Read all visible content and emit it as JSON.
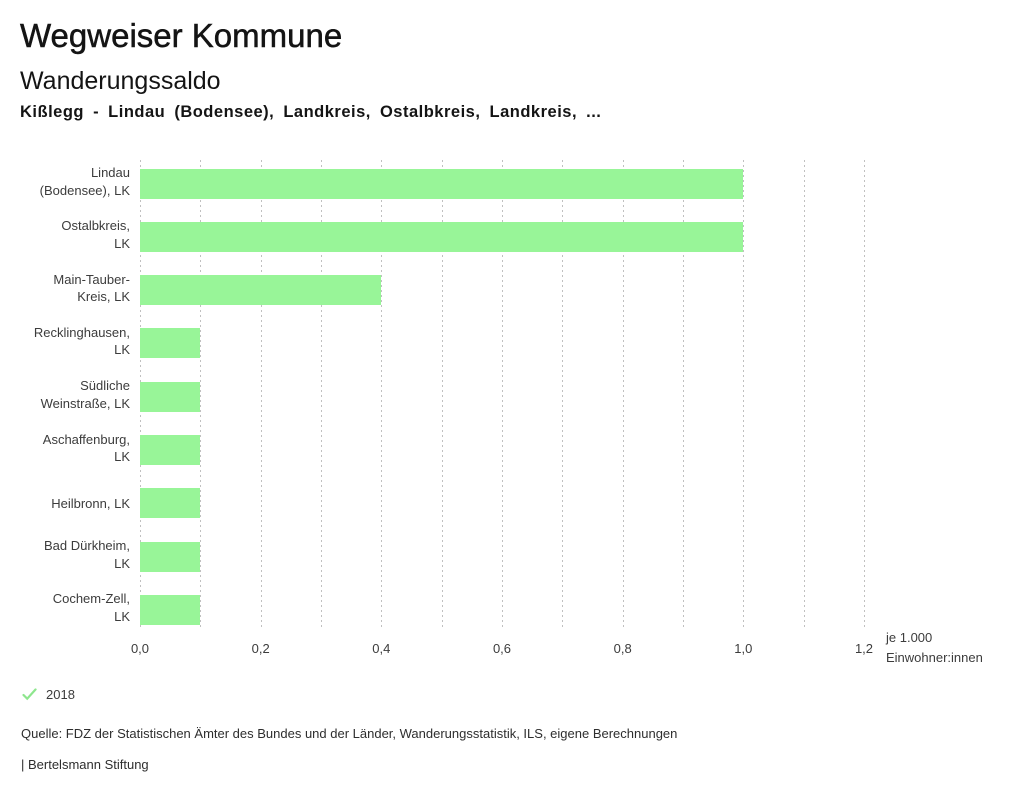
{
  "header": {
    "title": "Wegweiser Kommune",
    "subtitle": "Wanderungssaldo",
    "description": "Kißlegg - Lindau (Bodensee), Landkreis, Ostalbkreis, Landkreis, ..."
  },
  "chart_data": {
    "type": "bar",
    "orientation": "horizontal",
    "categories": [
      "Lindau\n(Bodensee), LK",
      "Ostalbkreis,\nLK",
      "Main-Tauber-\nKreis, LK",
      "Recklinghausen,\nLK",
      "Südliche\nWeinstraße, LK",
      "Aschaffenburg,\nLK",
      "Heilbronn, LK",
      "Bad Dürkheim,\nLK",
      "Cochem-Zell,\nLK"
    ],
    "values": [
      1.0,
      1.0,
      0.4,
      0.1,
      0.1,
      0.1,
      0.1,
      0.1,
      0.1
    ],
    "series_name": "2018",
    "xlim": [
      0,
      1.2
    ],
    "grid_step": 0.1,
    "tick_step": 0.2,
    "decimal_separator": ",",
    "unit_label": "je 1.000\nEinwohner:innen",
    "bar_color": "#98f598",
    "grid_on": true,
    "legend_position": "bottom-left"
  },
  "legend": {
    "year_label": "2018",
    "check_color": "#8ee68e"
  },
  "footer": {
    "source": "Quelle: FDZ der Statistischen Ämter des Bundes und der Länder, Wanderungsstatistik, ILS, eigene Berechnungen",
    "attribution": "| Bertelsmann Stiftung"
  }
}
